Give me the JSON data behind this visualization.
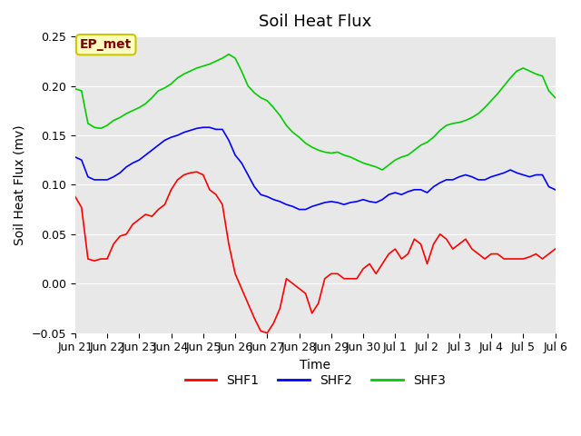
{
  "title": "Soil Heat Flux",
  "xlabel": "Time",
  "ylabel": "Soil Heat Flux (mv)",
  "ylim": [
    -0.05,
    0.25
  ],
  "bg_color": "#e8e8e8",
  "fig_color": "#ffffff",
  "annotation_text": "EP_met",
  "annotation_bg": "#ffffc0",
  "annotation_border": "#c8c800",
  "annotation_text_color": "#800000",
  "legend_labels": [
    "SHF1",
    "SHF2",
    "SHF3"
  ],
  "line_colors": [
    "#ff0000",
    "#0000ff",
    "#00cc00"
  ],
  "x_tick_labels": [
    "Jun 21",
    "Jun 22",
    "Jun 23",
    "Jun 24",
    "Jun 25",
    "Jun 26",
    "Jun 27",
    "Jun 28",
    "Jun 29",
    "Jun 30",
    "Jul 1",
    "Jul 2",
    "Jul 3",
    "Jul 4",
    "Jul 5",
    "Jul 6"
  ],
  "shf1": [
    0.088,
    0.077,
    0.025,
    0.023,
    0.025,
    0.025,
    0.04,
    0.048,
    0.05,
    0.06,
    0.065,
    0.07,
    0.068,
    0.075,
    0.08,
    0.095,
    0.105,
    0.11,
    0.112,
    0.113,
    0.11,
    0.095,
    0.09,
    0.08,
    0.04,
    0.01,
    -0.005,
    -0.02,
    -0.035,
    -0.048,
    -0.05,
    -0.04,
    -0.025,
    0.005,
    0.0,
    -0.005,
    -0.01,
    -0.03,
    -0.02,
    0.005,
    0.01,
    0.01,
    0.005,
    0.005,
    0.005,
    0.015,
    0.02,
    0.01,
    0.02,
    0.03,
    0.035,
    0.025,
    0.03,
    0.045,
    0.04,
    0.02,
    0.04,
    0.05,
    0.045,
    0.035,
    0.04,
    0.045,
    0.035,
    0.03,
    0.025,
    0.03,
    0.03,
    0.025,
    0.025,
    0.025,
    0.025,
    0.027,
    0.03,
    0.025,
    0.03,
    0.035
  ],
  "shf2": [
    0.128,
    0.125,
    0.108,
    0.105,
    0.105,
    0.105,
    0.108,
    0.112,
    0.118,
    0.122,
    0.125,
    0.13,
    0.135,
    0.14,
    0.145,
    0.148,
    0.15,
    0.153,
    0.155,
    0.157,
    0.158,
    0.158,
    0.156,
    0.156,
    0.145,
    0.13,
    0.122,
    0.11,
    0.098,
    0.09,
    0.088,
    0.085,
    0.083,
    0.08,
    0.078,
    0.075,
    0.075,
    0.078,
    0.08,
    0.082,
    0.083,
    0.082,
    0.08,
    0.082,
    0.083,
    0.085,
    0.083,
    0.082,
    0.085,
    0.09,
    0.092,
    0.09,
    0.093,
    0.095,
    0.095,
    0.092,
    0.098,
    0.102,
    0.105,
    0.105,
    0.108,
    0.11,
    0.108,
    0.105,
    0.105,
    0.108,
    0.11,
    0.112,
    0.115,
    0.112,
    0.11,
    0.108,
    0.11,
    0.11,
    0.098,
    0.095
  ],
  "shf3": [
    0.197,
    0.195,
    0.162,
    0.158,
    0.157,
    0.16,
    0.165,
    0.168,
    0.172,
    0.175,
    0.178,
    0.182,
    0.188,
    0.195,
    0.198,
    0.202,
    0.208,
    0.212,
    0.215,
    0.218,
    0.22,
    0.222,
    0.225,
    0.228,
    0.232,
    0.228,
    0.215,
    0.2,
    0.193,
    0.188,
    0.185,
    0.178,
    0.17,
    0.16,
    0.153,
    0.148,
    0.142,
    0.138,
    0.135,
    0.133,
    0.132,
    0.133,
    0.13,
    0.128,
    0.125,
    0.122,
    0.12,
    0.118,
    0.115,
    0.12,
    0.125,
    0.128,
    0.13,
    0.135,
    0.14,
    0.143,
    0.148,
    0.155,
    0.16,
    0.162,
    0.163,
    0.165,
    0.168,
    0.172,
    0.178,
    0.185,
    0.192,
    0.2,
    0.208,
    0.215,
    0.218,
    0.215,
    0.212,
    0.21,
    0.195,
    0.188
  ]
}
